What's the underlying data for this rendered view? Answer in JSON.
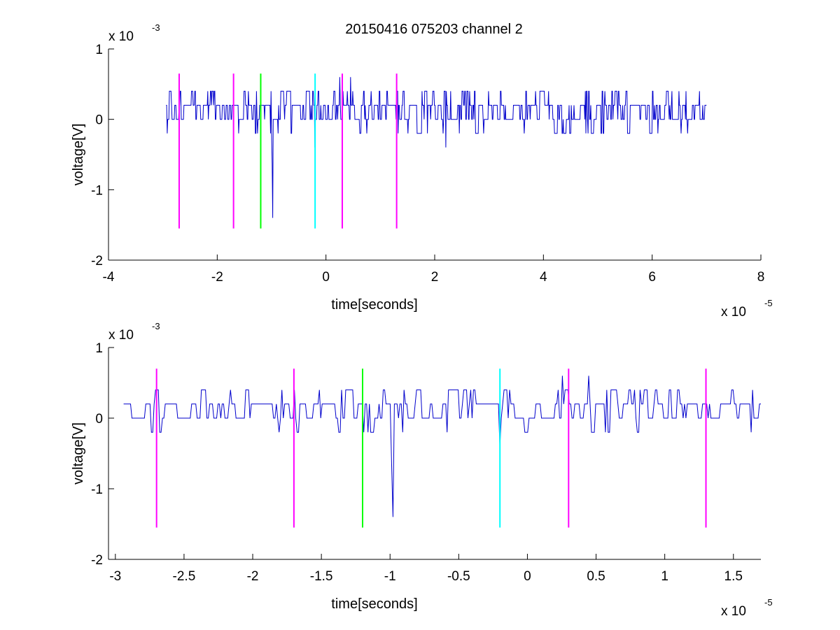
{
  "figure": {
    "title": "20150416 075203 channel 2"
  },
  "chart_data": [
    {
      "type": "line",
      "title": "20150416 075203 channel 2",
      "xlabel": "time[seconds]",
      "ylabel": "voltage[V]",
      "x_exponent_label": "x 10",
      "x_exponent_power": "-5",
      "y_exponent_label": "x 10",
      "y_exponent_power": "-3",
      "xlim": [
        -4,
        8
      ],
      "ylim": [
        -2,
        1
      ],
      "xticks": [
        -4,
        -2,
        0,
        2,
        4,
        6,
        8
      ],
      "xtick_labels": [
        "-4",
        "-2",
        "0",
        "2",
        "4",
        "6",
        "8"
      ],
      "yticks": [
        -2,
        -1,
        0,
        1
      ],
      "ytick_labels": [
        "-2",
        "-1",
        "0",
        "1"
      ],
      "grid": false,
      "signal_color": "#0000cc",
      "signal": {
        "x_start": -2.94,
        "x_end": 7.0,
        "points": 1000,
        "seed": 7,
        "levels": [
          -0.2,
          0,
          0.2,
          0.4
        ],
        "spikes": [
          [
            -0.98,
            -1.4
          ],
          [
            -0.2,
            -0.4
          ],
          [
            2.2,
            -0.4
          ],
          [
            0.25,
            0.6
          ],
          [
            0.45,
            0.6
          ]
        ]
      },
      "markers": [
        {
          "x": -2.7,
          "color": "#ff00ff"
        },
        {
          "x": -1.7,
          "color": "#ff00ff"
        },
        {
          "x": -1.2,
          "color": "#00ff00"
        },
        {
          "x": -0.2,
          "color": "#00ffff"
        },
        {
          "x": 0.3,
          "color": "#ff00ff"
        },
        {
          "x": 1.3,
          "color": "#ff00ff"
        }
      ],
      "marker_range": [
        -1.55,
        0.65
      ]
    },
    {
      "type": "line",
      "title": "",
      "xlabel": "time[seconds]",
      "ylabel": "voltage[V]",
      "x_exponent_label": "x 10",
      "x_exponent_power": "-5",
      "y_exponent_label": "x 10",
      "y_exponent_power": "-3",
      "xlim": [
        -3.05,
        1.7
      ],
      "ylim": [
        -2,
        1
      ],
      "xticks": [
        -3,
        -2.5,
        -2,
        -1.5,
        -1,
        -0.5,
        0,
        0.5,
        1,
        1.5
      ],
      "xtick_labels": [
        "-3",
        "-2.5",
        "-2",
        "-1.5",
        "-1",
        "-0.5",
        "0",
        "0.5",
        "1",
        "1.5"
      ],
      "yticks": [
        -2,
        -1,
        0,
        1
      ],
      "ytick_labels": [
        "-2",
        "-1",
        "0",
        "1"
      ],
      "grid": false,
      "signal_color": "#0000cc",
      "signal": {
        "x_start": -2.94,
        "x_end": 1.7,
        "points": 460,
        "seed": 11,
        "levels": [
          -0.2,
          0,
          0.2,
          0.4
        ],
        "spikes": [
          [
            -0.98,
            -1.4
          ],
          [
            -0.2,
            -0.4
          ],
          [
            0.25,
            0.6
          ],
          [
            0.45,
            0.6
          ]
        ]
      },
      "markers": [
        {
          "x": -2.7,
          "color": "#ff00ff"
        },
        {
          "x": -1.7,
          "color": "#ff00ff"
        },
        {
          "x": -1.2,
          "color": "#00ff00"
        },
        {
          "x": -0.2,
          "color": "#00ffff"
        },
        {
          "x": 0.3,
          "color": "#ff00ff"
        },
        {
          "x": 1.3,
          "color": "#ff00ff"
        }
      ],
      "marker_range": [
        -1.55,
        0.7
      ]
    }
  ]
}
